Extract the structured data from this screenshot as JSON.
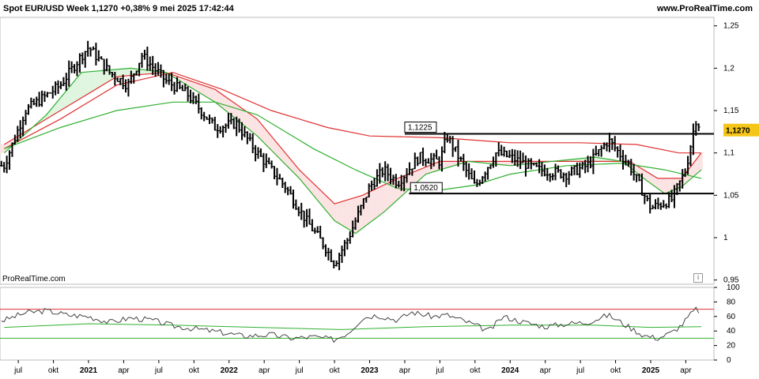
{
  "header": {
    "title": "Spot EUR/USD Week 1,1270 +0,38% 9 mei 2025 17:42:44",
    "site": "www.ProRealTime.com"
  },
  "watermark": "ProRealTime.com",
  "info_glyph": "i",
  "colors": {
    "ma_red": "#e03030",
    "ma_green": "#30b030",
    "fill_red": "#fbe3e3",
    "fill_green": "#dff5df",
    "price_badge": "#f5c518"
  },
  "chart_data": [
    {
      "type": "ohlc-bar",
      "ylim": [
        0.945,
        1.26
      ],
      "yticks": [
        {
          "v": 1.25,
          "label": "1,25"
        },
        {
          "v": 1.2,
          "label": "1,2"
        },
        {
          "v": 1.15,
          "label": "1,15"
        },
        {
          "v": 1.1,
          "label": "1,1"
        },
        {
          "v": 1.05,
          "label": "1,05"
        },
        {
          "v": 1.0,
          "label": "1"
        },
        {
          "v": 0.95,
          "label": "0,95"
        }
      ],
      "last_price": {
        "v": 1.127,
        "label": "1,1270"
      },
      "levels": [
        {
          "v": 1.1225,
          "label": "1,1225"
        },
        {
          "v": 1.052,
          "label": "1,0520"
        }
      ],
      "price_path": [
        [
          2020.4,
          1.085
        ],
        [
          2020.55,
          1.15
        ],
        [
          2020.8,
          1.18
        ],
        [
          2020.95,
          1.215
        ],
        [
          2021.0,
          1.225
        ],
        [
          2021.15,
          1.195
        ],
        [
          2021.28,
          1.18
        ],
        [
          2021.38,
          1.215
        ],
        [
          2021.55,
          1.185
        ],
        [
          2021.7,
          1.17
        ],
        [
          2021.9,
          1.13
        ],
        [
          2022.05,
          1.135
        ],
        [
          2022.2,
          1.1
        ],
        [
          2022.4,
          1.06
        ],
        [
          2022.55,
          1.02
        ],
        [
          2022.68,
          0.99
        ],
        [
          2022.75,
          0.97
        ],
        [
          2022.85,
          1.0
        ],
        [
          2023.0,
          1.06
        ],
        [
          2023.1,
          1.08
        ],
        [
          2023.2,
          1.065
        ],
        [
          2023.35,
          1.095
        ],
        [
          2023.5,
          1.09
        ],
        [
          2023.55,
          1.12
        ],
        [
          2023.75,
          1.06
        ],
        [
          2023.9,
          1.1
        ],
        [
          2024.0,
          1.095
        ],
        [
          2024.2,
          1.08
        ],
        [
          2024.4,
          1.075
        ],
        [
          2024.55,
          1.085
        ],
        [
          2024.7,
          1.115
        ],
        [
          2024.85,
          1.085
        ],
        [
          2025.0,
          1.035
        ],
        [
          2025.15,
          1.045
        ],
        [
          2025.25,
          1.08
        ],
        [
          2025.32,
          1.14
        ],
        [
          2025.36,
          1.128
        ]
      ],
      "ma_fast": [
        [
          2020.4,
          1.1
        ],
        [
          2020.7,
          1.145
        ],
        [
          2020.95,
          1.195
        ],
        [
          2021.3,
          1.2
        ],
        [
          2021.55,
          1.195
        ],
        [
          2021.9,
          1.16
        ],
        [
          2022.2,
          1.12
        ],
        [
          2022.5,
          1.07
        ],
        [
          2022.75,
          1.02
        ],
        [
          2022.9,
          1.005
        ],
        [
          2023.1,
          1.03
        ],
        [
          2023.4,
          1.075
        ],
        [
          2023.7,
          1.09
        ],
        [
          2024.0,
          1.085
        ],
        [
          2024.3,
          1.09
        ],
        [
          2024.6,
          1.095
        ],
        [
          2024.8,
          1.09
        ],
        [
          2024.95,
          1.07
        ],
        [
          2025.1,
          1.052
        ],
        [
          2025.22,
          1.06
        ],
        [
          2025.36,
          1.08
        ]
      ],
      "ma_slow": [
        [
          2020.4,
          1.105
        ],
        [
          2020.8,
          1.13
        ],
        [
          2021.2,
          1.15
        ],
        [
          2021.6,
          1.16
        ],
        [
          2021.9,
          1.16
        ],
        [
          2022.2,
          1.145
        ],
        [
          2022.6,
          1.105
        ],
        [
          2022.9,
          1.08
        ],
        [
          2023.2,
          1.058
        ],
        [
          2023.45,
          1.055
        ],
        [
          2023.75,
          1.062
        ],
        [
          2024.0,
          1.075
        ],
        [
          2024.4,
          1.085
        ],
        [
          2024.8,
          1.088
        ],
        [
          2025.1,
          1.08
        ],
        [
          2025.36,
          1.07
        ]
      ],
      "ma_red_fast": [
        [
          2020.4,
          1.11
        ],
        [
          2020.8,
          1.15
        ],
        [
          2021.2,
          1.19
        ],
        [
          2021.55,
          1.195
        ],
        [
          2021.9,
          1.175
        ],
        [
          2022.2,
          1.14
        ],
        [
          2022.5,
          1.08
        ],
        [
          2022.75,
          1.04
        ],
        [
          2022.95,
          1.05
        ],
        [
          2023.2,
          1.07
        ],
        [
          2023.5,
          1.09
        ],
        [
          2023.8,
          1.09
        ],
        [
          2024.1,
          1.09
        ],
        [
          2024.5,
          1.09
        ],
        [
          2024.85,
          1.09
        ],
        [
          2025.05,
          1.07
        ],
        [
          2025.22,
          1.07
        ],
        [
          2025.36,
          1.1
        ]
      ],
      "ma_red_slow": [
        [
          2020.4,
          1.105
        ],
        [
          2020.8,
          1.14
        ],
        [
          2021.2,
          1.18
        ],
        [
          2021.6,
          1.195
        ],
        [
          2021.95,
          1.175
        ],
        [
          2022.3,
          1.15
        ],
        [
          2022.7,
          1.13
        ],
        [
          2023.0,
          1.12
        ],
        [
          2023.5,
          1.118
        ],
        [
          2024.0,
          1.112
        ],
        [
          2024.5,
          1.112
        ],
        [
          2024.9,
          1.11
        ],
        [
          2025.2,
          1.1
        ],
        [
          2025.36,
          1.1
        ]
      ]
    },
    {
      "type": "line",
      "ylim": [
        0,
        100
      ],
      "yticks": [
        {
          "v": 100,
          "label": "100"
        },
        {
          "v": 80,
          "label": "80"
        },
        {
          "v": 60,
          "label": "60"
        },
        {
          "v": 40,
          "label": "40"
        },
        {
          "v": 20,
          "label": "20"
        },
        {
          "v": 0,
          "label": "0"
        }
      ],
      "upper_band": 70,
      "lower_band": 30,
      "osc_path": [
        [
          2020.4,
          55
        ],
        [
          2020.55,
          65
        ],
        [
          2020.7,
          68
        ],
        [
          2020.85,
          62
        ],
        [
          2021.0,
          60
        ],
        [
          2021.15,
          52
        ],
        [
          2021.3,
          58
        ],
        [
          2021.45,
          55
        ],
        [
          2021.6,
          47
        ],
        [
          2021.8,
          42
        ],
        [
          2021.95,
          38
        ],
        [
          2022.1,
          33
        ],
        [
          2022.3,
          35
        ],
        [
          2022.45,
          30
        ],
        [
          2022.6,
          32
        ],
        [
          2022.75,
          28
        ],
        [
          2022.85,
          38
        ],
        [
          2022.95,
          58
        ],
        [
          2023.05,
          62
        ],
        [
          2023.2,
          55
        ],
        [
          2023.3,
          66
        ],
        [
          2023.45,
          60
        ],
        [
          2023.55,
          62
        ],
        [
          2023.7,
          52
        ],
        [
          2023.85,
          40
        ],
        [
          2023.95,
          60
        ],
        [
          2024.1,
          52
        ],
        [
          2024.25,
          46
        ],
        [
          2024.4,
          50
        ],
        [
          2024.55,
          52
        ],
        [
          2024.7,
          62
        ],
        [
          2024.85,
          45
        ],
        [
          2024.95,
          34
        ],
        [
          2025.05,
          30
        ],
        [
          2025.15,
          38
        ],
        [
          2025.22,
          48
        ],
        [
          2025.28,
          62
        ],
        [
          2025.32,
          70
        ],
        [
          2025.36,
          66
        ]
      ],
      "signal_path": [
        [
          2020.4,
          45
        ],
        [
          2021.0,
          50
        ],
        [
          2021.6,
          48
        ],
        [
          2022.2,
          45
        ],
        [
          2022.8,
          42
        ],
        [
          2023.4,
          46
        ],
        [
          2024.0,
          48
        ],
        [
          2024.6,
          48
        ],
        [
          2025.0,
          45
        ],
        [
          2025.36,
          46
        ]
      ]
    }
  ],
  "x_axis": {
    "range": [
      2020.37,
      2025.45
    ],
    "ticks": [
      {
        "v": 2020.5,
        "label": "jul",
        "year": false
      },
      {
        "v": 2020.75,
        "label": "okt",
        "year": false
      },
      {
        "v": 2021.0,
        "label": "2021",
        "year": true
      },
      {
        "v": 2021.25,
        "label": "apr",
        "year": false
      },
      {
        "v": 2021.5,
        "label": "jul",
        "year": false
      },
      {
        "v": 2021.75,
        "label": "okt",
        "year": false
      },
      {
        "v": 2022.0,
        "label": "2022",
        "year": true
      },
      {
        "v": 2022.25,
        "label": "apr",
        "year": false
      },
      {
        "v": 2022.5,
        "label": "jul",
        "year": false
      },
      {
        "v": 2022.75,
        "label": "okt",
        "year": false
      },
      {
        "v": 2023.0,
        "label": "2023",
        "year": true
      },
      {
        "v": 2023.25,
        "label": "apr",
        "year": false
      },
      {
        "v": 2023.5,
        "label": "jul",
        "year": false
      },
      {
        "v": 2023.75,
        "label": "okt",
        "year": false
      },
      {
        "v": 2024.0,
        "label": "2024",
        "year": true
      },
      {
        "v": 2024.25,
        "label": "apr",
        "year": false
      },
      {
        "v": 2024.5,
        "label": "jul",
        "year": false
      },
      {
        "v": 2024.75,
        "label": "okt",
        "year": false
      },
      {
        "v": 2025.0,
        "label": "2025",
        "year": true
      },
      {
        "v": 2025.25,
        "label": "apr",
        "year": false
      }
    ]
  }
}
